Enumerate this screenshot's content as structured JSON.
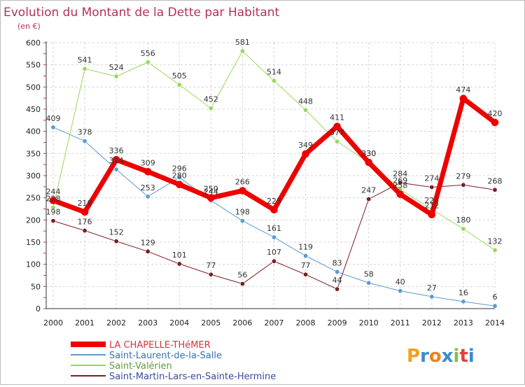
{
  "chart_data": {
    "type": "line",
    "title": "Evolution du Montant de la Dette par Habitant",
    "subtitle": "(en €)",
    "xlabel": "",
    "ylabel": "",
    "x": [
      "2000",
      "2001",
      "2002",
      "2003",
      "2004",
      "2005",
      "2006",
      "2007",
      "2008",
      "2009",
      "2010",
      "2011",
      "2012",
      "2013",
      "2014"
    ],
    "ylim": [
      0,
      600
    ],
    "yticks": [
      0,
      50,
      100,
      150,
      200,
      250,
      300,
      350,
      400,
      450,
      500,
      550,
      600
    ],
    "grid": true,
    "legend_position": "bottom-left",
    "series": [
      {
        "name": "LA CHAPELLE-THéMER",
        "color": "#ee0000",
        "width": 7,
        "values": [
          244,
          218,
          336,
          309,
          280,
          250,
          266,
          223,
          349,
          411,
          330,
          258,
          212,
          474,
          420
        ],
        "labels": [
          "244",
          "218",
          "336",
          "309",
          "280",
          "250",
          "266",
          "223",
          "349",
          "411",
          "330",
          "258",
          "212",
          "474",
          "420"
        ]
      },
      {
        "name": "Saint-Laurent-de-la-Salle",
        "color": "#5a9ad2",
        "width": 1,
        "values": [
          409,
          378,
          314,
          253,
          296,
          244,
          198,
          161,
          119,
          83,
          58,
          40,
          27,
          16,
          6
        ],
        "labels": [
          "409",
          "378",
          "314",
          "253",
          "296",
          "244",
          "198",
          "161",
          "119",
          "83",
          "58",
          "40",
          "27",
          "16",
          "6"
        ]
      },
      {
        "name": "Saint-Valérien",
        "color": "#99d85a",
        "width": 1,
        "values": [
          228,
          541,
          524,
          556,
          505,
          452,
          581,
          514,
          448,
          377,
          330,
          269,
          224,
          180,
          132
        ],
        "labels": [
          "228",
          "541",
          "524",
          "556",
          "505",
          "452",
          "581",
          "514",
          "448",
          "377",
          "330",
          "269",
          "224",
          "180",
          "132"
        ]
      },
      {
        "name": "Saint-Martin-Lars-en-Sainte-Hermine",
        "color": "#7a1e24",
        "width": 1,
        "values": [
          198,
          176,
          152,
          129,
          101,
          77,
          56,
          107,
          77,
          44,
          247,
          284,
          274,
          279,
          268
        ],
        "labels": [
          "198",
          "176",
          "152",
          "129",
          "101",
          "77",
          "56",
          "107",
          "77",
          "44",
          "247",
          "284",
          "274",
          "279",
          "268"
        ]
      }
    ]
  },
  "logo": {
    "text": "Proxiti",
    "letters": [
      "P",
      "r",
      "o",
      "x",
      "i",
      "t",
      "i"
    ]
  }
}
